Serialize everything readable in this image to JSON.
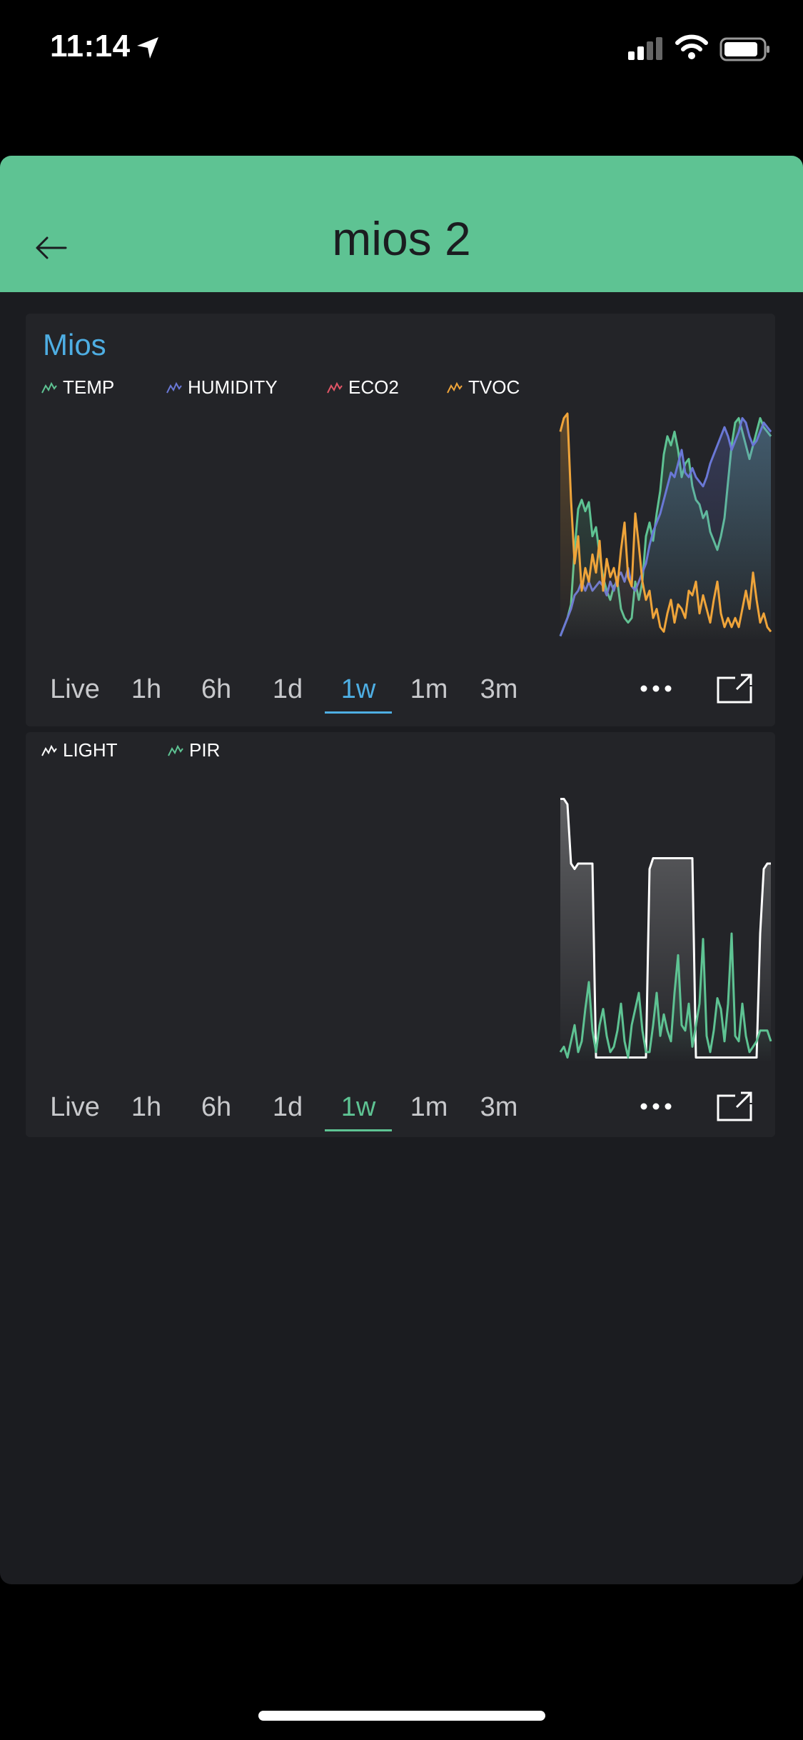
{
  "status_bar": {
    "time": "11:14"
  },
  "header": {
    "title": "mios 2"
  },
  "colors": {
    "header": "#5ec393",
    "temp": "#5ec393",
    "humidity": "#6a78d6",
    "eco2": "#e05566",
    "tvoc": "#efa43a",
    "light": "#ffffff",
    "pir": "#5ec393",
    "active_blue": "#4eaee3"
  },
  "chart1": {
    "title": "Mios",
    "legend": [
      "TEMP",
      "HUMIDITY",
      "ECO2",
      "TVOC"
    ],
    "ranges": [
      "Live",
      "1h",
      "6h",
      "1d",
      "1w",
      "1m",
      "3m"
    ],
    "active_range": "1w"
  },
  "chart2": {
    "legend": [
      "LIGHT",
      "PIR"
    ],
    "ranges": [
      "Live",
      "1h",
      "6h",
      "1d",
      "1w",
      "1m",
      "3m"
    ],
    "active_range": "1w"
  },
  "chart_data": [
    {
      "type": "area",
      "title": "Mios",
      "x": [
        0,
        1,
        2,
        3,
        4,
        5,
        6,
        7,
        8,
        9,
        10,
        11,
        12,
        13,
        14,
        15,
        16,
        17,
        18,
        19,
        20,
        21,
        22,
        23,
        24,
        25,
        26,
        27,
        28,
        29,
        30,
        31,
        32,
        33,
        34,
        35,
        36,
        37,
        38,
        39,
        40,
        41,
        42,
        43,
        44,
        45,
        46,
        47,
        48,
        49,
        50,
        51,
        52,
        53,
        54,
        55,
        56,
        57,
        58,
        59
      ],
      "ylim": [
        0,
        100
      ],
      "series": [
        {
          "name": "TEMP",
          "values": [
            2,
            6,
            10,
            16,
            40,
            58,
            62,
            57,
            61,
            46,
            50,
            38,
            28,
            22,
            18,
            24,
            26,
            14,
            10,
            8,
            10,
            26,
            18,
            26,
            46,
            52,
            44,
            56,
            66,
            82,
            90,
            86,
            92,
            84,
            72,
            78,
            80,
            68,
            62,
            60,
            54,
            57,
            48,
            44,
            40,
            46,
            54,
            70,
            86,
            96,
            98,
            92,
            86,
            80,
            86,
            92,
            98,
            94,
            92,
            90
          ]
        },
        {
          "name": "HUMIDITY",
          "values": [
            2,
            6,
            10,
            14,
            20,
            22,
            26,
            22,
            26,
            22,
            24,
            26,
            24,
            20,
            26,
            22,
            28,
            30,
            26,
            32,
            24,
            22,
            26,
            30,
            34,
            42,
            48,
            52,
            56,
            62,
            68,
            74,
            72,
            78,
            84,
            74,
            72,
            76,
            72,
            70,
            68,
            72,
            78,
            82,
            86,
            90,
            94,
            90,
            84,
            88,
            92,
            98,
            96,
            90,
            86,
            88,
            92,
            96,
            94,
            92
          ]
        },
        {
          "name": "TVOC",
          "values": [
            92,
            98,
            100,
            62,
            34,
            46,
            22,
            32,
            26,
            38,
            30,
            44,
            22,
            36,
            28,
            32,
            24,
            40,
            52,
            28,
            24,
            56,
            42,
            26,
            18,
            22,
            10,
            14,
            6,
            4,
            12,
            18,
            8,
            16,
            14,
            10,
            22,
            20,
            26,
            12,
            20,
            14,
            8,
            18,
            26,
            12,
            6,
            10,
            6,
            10,
            6,
            14,
            22,
            14,
            30,
            18,
            8,
            12,
            6,
            4
          ]
        }
      ]
    },
    {
      "type": "area",
      "x": [
        0,
        1,
        2,
        3,
        4,
        5,
        6,
        7,
        8,
        9,
        10,
        11,
        12,
        13,
        14,
        15,
        16,
        17,
        18,
        19,
        20,
        21,
        22,
        23,
        24,
        25,
        26,
        27,
        28,
        29,
        30,
        31,
        32,
        33,
        34,
        35,
        36,
        37,
        38,
        39,
        40,
        41,
        42,
        43,
        44,
        45,
        46,
        47,
        48,
        49,
        50,
        51,
        52,
        53,
        54,
        55,
        56,
        57,
        58,
        59
      ],
      "ylim": [
        0,
        100
      ],
      "series": [
        {
          "name": "LIGHT",
          "values": [
            98,
            98,
            96,
            74,
            72,
            74,
            74,
            74,
            74,
            74,
            2,
            2,
            2,
            2,
            2,
            2,
            2,
            2,
            2,
            2,
            2,
            2,
            2,
            2,
            2,
            72,
            76,
            76,
            76,
            76,
            76,
            76,
            76,
            76,
            76,
            76,
            76,
            76,
            2,
            2,
            2,
            2,
            2,
            2,
            2,
            2,
            2,
            2,
            2,
            2,
            2,
            2,
            2,
            2,
            2,
            2,
            48,
            72,
            74,
            74
          ]
        },
        {
          "name": "PIR",
          "values": [
            4,
            6,
            2,
            8,
            14,
            4,
            8,
            20,
            30,
            12,
            4,
            14,
            20,
            10,
            4,
            6,
            12,
            22,
            8,
            2,
            14,
            20,
            26,
            12,
            4,
            4,
            14,
            26,
            10,
            18,
            12,
            8,
            26,
            40,
            14,
            12,
            22,
            6,
            14,
            22,
            46,
            10,
            4,
            12,
            24,
            20,
            8,
            22,
            48,
            10,
            8,
            22,
            10,
            4,
            6,
            8,
            12,
            12,
            12,
            8
          ]
        }
      ]
    }
  ]
}
